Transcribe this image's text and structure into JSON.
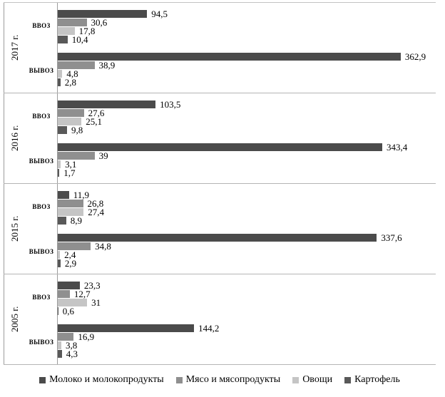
{
  "chart_data": {
    "type": "bar",
    "orientation": "horizontal",
    "grid": false,
    "legend_position": "bottom",
    "axis_max": 400,
    "decimal_separator": ",",
    "series": [
      {
        "key": "milk",
        "name": "Молоко и молокопродукты",
        "color": "#4b4b4b"
      },
      {
        "key": "meat",
        "name": "Мясо и мясопродукты",
        "color": "#8f8f8f"
      },
      {
        "key": "vegetables",
        "name": "Овощи",
        "color": "#c5c5c5"
      },
      {
        "key": "potatoes",
        "name": "Картофель",
        "color": "#595959"
      }
    ],
    "groups": [
      {
        "year": "2017 г.",
        "clusters": [
          {
            "label": "ввоз",
            "values": [
              94.5,
              30.6,
              17.8,
              10.4
            ],
            "display": [
              "94,5",
              "30,6",
              "17,8",
              "10,4"
            ]
          },
          {
            "label": "вывоз",
            "values": [
              362.9,
              38.9,
              4.8,
              2.8
            ],
            "display": [
              "362,9",
              "38,9",
              "4,8",
              "2,8"
            ]
          }
        ]
      },
      {
        "year": "2016 г.",
        "clusters": [
          {
            "label": "ввоз",
            "values": [
              103.5,
              27.6,
              25.1,
              9.8
            ],
            "display": [
              "103,5",
              "27,6",
              "25,1",
              "9,8"
            ]
          },
          {
            "label": "вывоз",
            "values": [
              343.4,
              39,
              3.1,
              1.7
            ],
            "display": [
              "343,4",
              "39",
              "3,1",
              "1,7"
            ]
          }
        ]
      },
      {
        "year": "2015 г.",
        "clusters": [
          {
            "label": "ввоз",
            "values": [
              11.9,
              26.8,
              27.4,
              8.9
            ],
            "display": [
              "11,9",
              "26,8",
              "27,4",
              "8,9"
            ]
          },
          {
            "label": "вывоз",
            "values": [
              337.6,
              34.8,
              2.4,
              2.9
            ],
            "display": [
              "337,6",
              "34,8",
              "2,4",
              "2,9"
            ]
          }
        ]
      },
      {
        "year": "2005 г.",
        "clusters": [
          {
            "label": "ввоз",
            "values": [
              23.3,
              12.7,
              31,
              0.6
            ],
            "display": [
              "23,3",
              "12,7",
              "31",
              "0,6"
            ]
          },
          {
            "label": "вывоз",
            "values": [
              144.2,
              16.9,
              3.8,
              4.3
            ],
            "display": [
              "144,2",
              "16,9",
              "3,8",
              "4,3"
            ]
          }
        ]
      }
    ]
  }
}
